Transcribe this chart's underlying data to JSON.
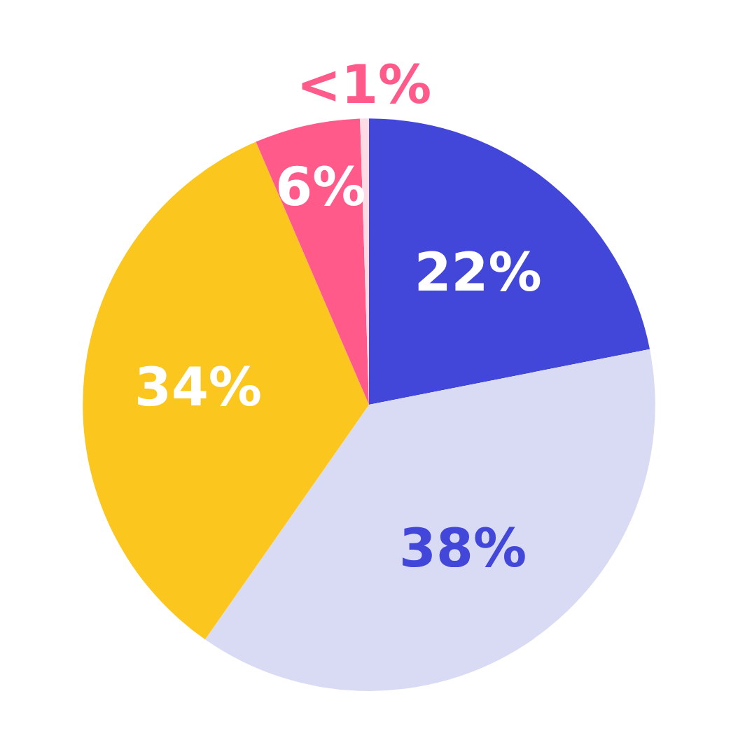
{
  "chart_data": {
    "type": "pie",
    "categories": [
      null,
      null,
      null,
      null,
      null
    ],
    "values": [
      22,
      38,
      34,
      6,
      0.5
    ],
    "value_labels": [
      "22%",
      "38%",
      "34%",
      "6%",
      "<1%"
    ],
    "colors": [
      "#4347d9",
      "#d9dbf4",
      "#fbc61d",
      "#ff5a8a",
      "#fcdbe5"
    ]
  }
}
